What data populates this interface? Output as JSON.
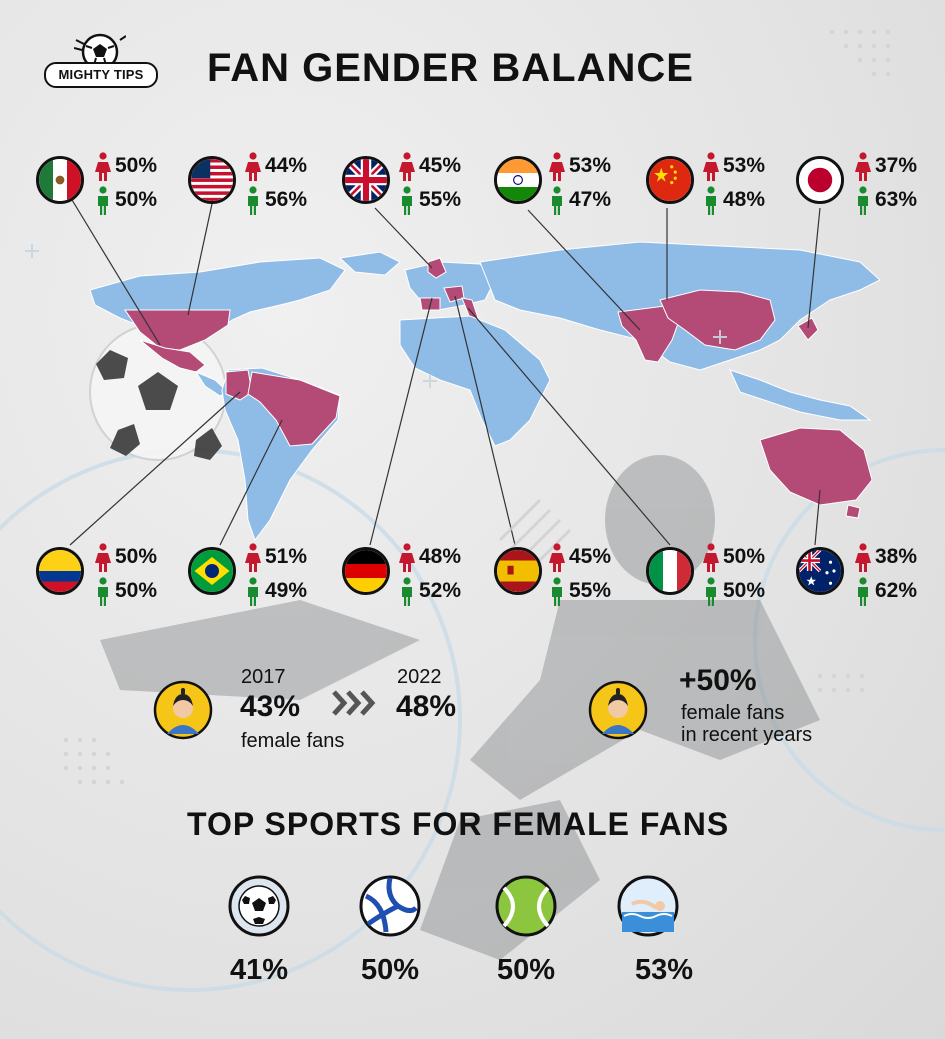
{
  "logo": {
    "text": "MIGHTY TIPS",
    "icon": "soccer-ball-icon"
  },
  "title": "FAN GENDER BALANCE",
  "colors": {
    "female": "#c4182f",
    "male": "#1a8a2f",
    "map_land": "#8fbce6",
    "map_highlight": "#b34b76"
  },
  "countries": [
    {
      "id": "mexico",
      "flag": "mexico-flag",
      "female": "50%",
      "male": "50%"
    },
    {
      "id": "usa",
      "flag": "usa-flag",
      "female": "44%",
      "male": "56%"
    },
    {
      "id": "uk",
      "flag": "uk-flag",
      "female": "45%",
      "male": "55%"
    },
    {
      "id": "india",
      "flag": "india-flag",
      "female": "53%",
      "male": "47%"
    },
    {
      "id": "china",
      "flag": "china-flag",
      "female": "53%",
      "male": "48%"
    },
    {
      "id": "japan",
      "flag": "japan-flag",
      "female": "37%",
      "male": "63%"
    },
    {
      "id": "colombia",
      "flag": "colombia-flag",
      "female": "50%",
      "male": "50%"
    },
    {
      "id": "brazil",
      "flag": "brazil-flag",
      "female": "51%",
      "male": "49%"
    },
    {
      "id": "germany",
      "flag": "germany-flag",
      "female": "48%",
      "male": "52%"
    },
    {
      "id": "spain",
      "flag": "spain-flag",
      "female": "45%",
      "male": "55%"
    },
    {
      "id": "italy",
      "flag": "italy-flag",
      "female": "50%",
      "male": "50%"
    },
    {
      "id": "australia",
      "flag": "australia-flag",
      "female": "38%",
      "male": "62%"
    }
  ],
  "trend": {
    "year_start": "2017",
    "value_start": "43%",
    "label": "female fans",
    "year_end": "2022",
    "value_end": "48%",
    "growth_value": "+50%",
    "growth_line1": "female fans",
    "growth_line2": "in recent years"
  },
  "sports_title": "TOP SPORTS FOR FEMALE FANS",
  "sports": [
    {
      "icon": "soccer-ball-icon",
      "value": "41%"
    },
    {
      "icon": "volleyball-icon",
      "value": "50%"
    },
    {
      "icon": "tennis-ball-icon",
      "value": "50%"
    },
    {
      "icon": "swimmer-icon",
      "value": "53%"
    }
  ]
}
